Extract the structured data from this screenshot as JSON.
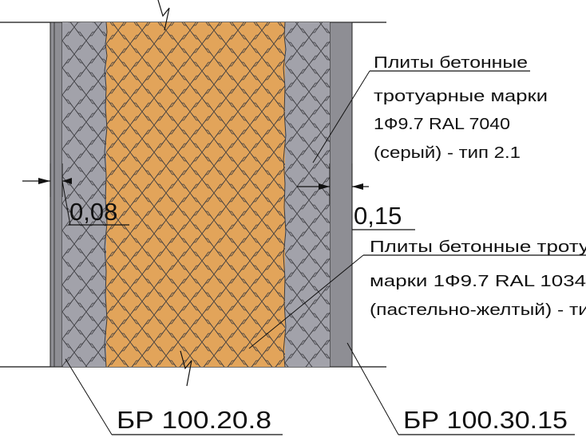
{
  "dimensions": {
    "left_gap": "0,08",
    "right_gap": "0,15"
  },
  "callouts": {
    "gray_paving": {
      "lines": [
        "Плиты бетонные",
        "тротуарные марки",
        "1Ф9.7 RAL 7040",
        "(серый) - тип 2.1"
      ]
    },
    "yellow_paving": {
      "lines": [
        "Плиты бетонные троту",
        "марки 1Ф9.7 RAL 1034",
        "(пастельно-желтый) - ти"
      ]
    },
    "curb_left": "БР 100.20.8",
    "curb_right": "БР 100.30.15"
  },
  "colors": {
    "curb": "#8e8e94",
    "paver_gray": "#a2a2aa",
    "paver_yellow": "#e2a45a",
    "joint": "#3c3c40",
    "line": "#111111"
  }
}
